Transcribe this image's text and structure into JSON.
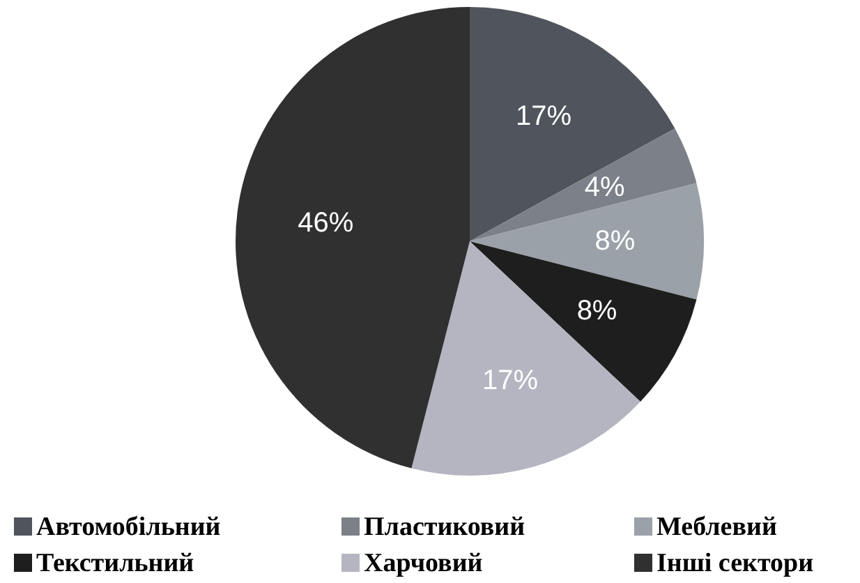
{
  "chart_data": {
    "type": "pie",
    "categories": [
      "Автомобільний",
      "Пластиковий",
      "Меблевий",
      "Текстильний",
      "Харчовий",
      "Інші сектори"
    ],
    "values": [
      17,
      4,
      8,
      8,
      17,
      46
    ],
    "value_labels": [
      "17%",
      "4%",
      "8%",
      "8%",
      "17%",
      "46%"
    ],
    "colors": [
      "#50545c",
      "#7c8088",
      "#9aa1a8",
      "#1e1e1e",
      "#b5b5c2",
      "#303030"
    ],
    "legend": "bottom"
  }
}
